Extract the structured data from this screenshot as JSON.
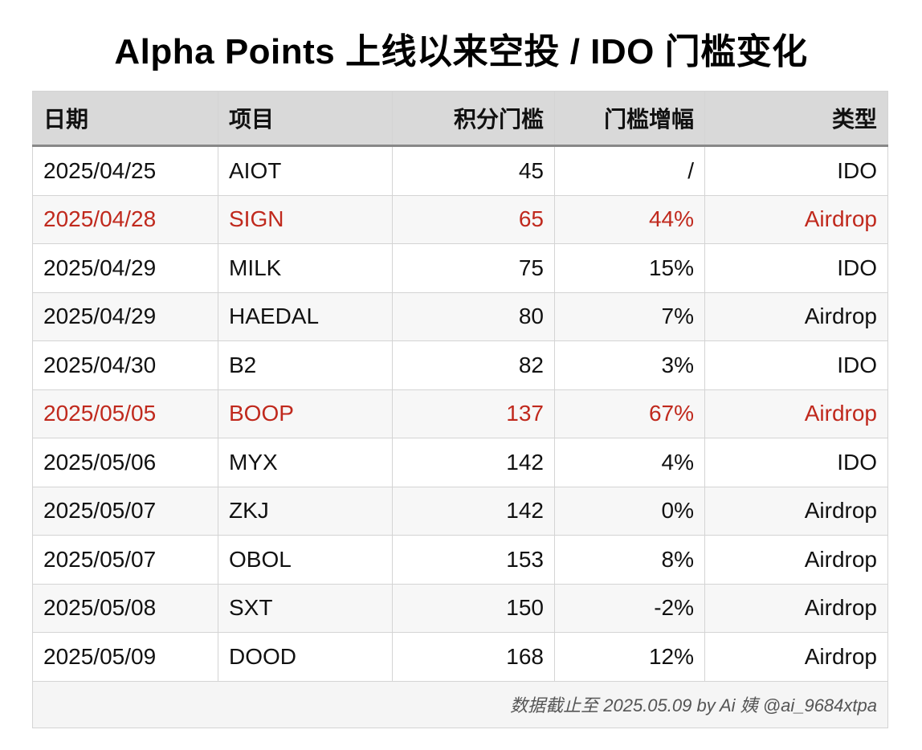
{
  "title": "Alpha Points 上线以来空投 / IDO 门槛变化",
  "table": {
    "headers": [
      "日期",
      "项目",
      "积分门槛",
      "门槛增幅",
      "类型"
    ],
    "rows": [
      {
        "date": "2025/04/25",
        "project": "AIOT",
        "points": "45",
        "increase": "/",
        "type": "IDO",
        "highlight": false
      },
      {
        "date": "2025/04/28",
        "project": "SIGN",
        "points": "65",
        "increase": "44%",
        "type": "Airdrop",
        "highlight": true
      },
      {
        "date": "2025/04/29",
        "project": "MILK",
        "points": "75",
        "increase": "15%",
        "type": "IDO",
        "highlight": false
      },
      {
        "date": "2025/04/29",
        "project": "HAEDAL",
        "points": "80",
        "increase": "7%",
        "type": "Airdrop",
        "highlight": false
      },
      {
        "date": "2025/04/30",
        "project": "B2",
        "points": "82",
        "increase": "3%",
        "type": "IDO",
        "highlight": false
      },
      {
        "date": "2025/05/05",
        "project": "BOOP",
        "points": "137",
        "increase": "67%",
        "type": "Airdrop",
        "highlight": true
      },
      {
        "date": "2025/05/06",
        "project": "MYX",
        "points": "142",
        "increase": "4%",
        "type": "IDO",
        "highlight": false
      },
      {
        "date": "2025/05/07",
        "project": "ZKJ",
        "points": "142",
        "increase": "0%",
        "type": "Airdrop",
        "highlight": false
      },
      {
        "date": "2025/05/07",
        "project": "OBOL",
        "points": "153",
        "increase": "8%",
        "type": "Airdrop",
        "highlight": false
      },
      {
        "date": "2025/05/08",
        "project": "SXT",
        "points": "150",
        "increase": "-2%",
        "type": "Airdrop",
        "highlight": false
      },
      {
        "date": "2025/05/09",
        "project": "DOOD",
        "points": "168",
        "increase": "12%",
        "type": "Airdrop",
        "highlight": false
      }
    ],
    "footer": "数据截止至 2025.05.09 by Ai 姨 @ai_9684xtpa"
  },
  "colors": {
    "highlight": "#c0291d",
    "header_bg": "#d9d9d9",
    "stripe_bg": "#f7f7f7"
  }
}
